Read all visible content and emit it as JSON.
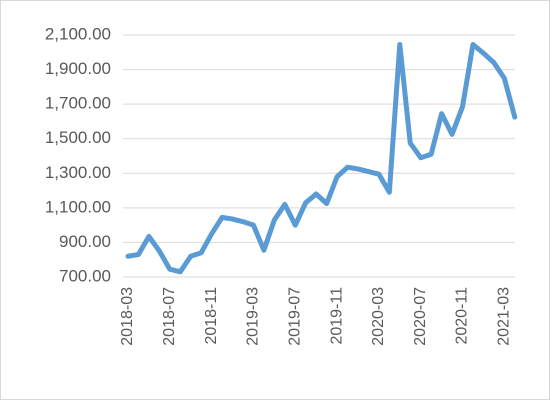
{
  "chart_data": {
    "type": "line",
    "categories": [
      "2018-03",
      null,
      null,
      null,
      "2018-07",
      null,
      null,
      null,
      "2018-11",
      null,
      null,
      null,
      "2019-03",
      null,
      null,
      null,
      "2019-07",
      null,
      null,
      null,
      "2019-11",
      null,
      null,
      null,
      "2020-03",
      null,
      null,
      null,
      "2020-07",
      null,
      null,
      null,
      "2020-11",
      null,
      null,
      null,
      "2021-03",
      null
    ],
    "series": [
      {
        "color": "#5b9bd5",
        "values": [
          820,
          830,
          935,
          850,
          745,
          730,
          820,
          840,
          950,
          1045,
          1035,
          1020,
          1000,
          855,
          1030,
          1120,
          1000,
          1130,
          1180,
          1125,
          1280,
          1335,
          1325,
          1310,
          1295,
          1190,
          2045,
          1475,
          1390,
          1410,
          1645,
          1525,
          1685,
          2045,
          1995,
          1940,
          1850,
          1625
        ]
      }
    ],
    "ylim": [
      700,
      2100
    ],
    "yticks": [
      {
        "value": 700,
        "label": "700.00"
      },
      {
        "value": 900,
        "label": "900.00"
      },
      {
        "value": 1100,
        "label": "1,100.00"
      },
      {
        "value": 1300,
        "label": "1,300.00"
      },
      {
        "value": 1500,
        "label": "1,500.00"
      },
      {
        "value": 1700,
        "label": "1,700.00"
      },
      {
        "value": 1900,
        "label": "1,900.00"
      },
      {
        "value": 2100,
        "label": "2,100.00"
      }
    ],
    "grid": true
  }
}
